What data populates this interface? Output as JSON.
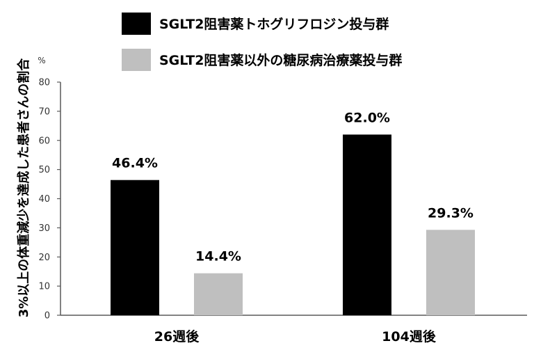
{
  "chart_data": {
    "type": "bar",
    "categories": [
      "26週後",
      "104週後"
    ],
    "series": [
      {
        "name": "SGLT2阻害薬トホグリフロジン投与群",
        "values": [
          46.4,
          62.0
        ],
        "labels": [
          "46.4%",
          "62.0%"
        ],
        "color": "#000000"
      },
      {
        "name": "SGLT2阻害薬以外の糖尿病治療薬投与群",
        "values": [
          14.4,
          29.3
        ],
        "labels": [
          "14.4%",
          "29.3%"
        ],
        "color": "#bfbfbf"
      }
    ],
    "ylabel": "3%以上の体重減少を達成した患者さんの割合",
    "y_unit": "%",
    "ylim": [
      0,
      80
    ],
    "yticks": [
      0,
      10,
      20,
      30,
      40,
      50,
      60,
      70,
      80
    ],
    "grid": false,
    "legend_position": "top"
  }
}
